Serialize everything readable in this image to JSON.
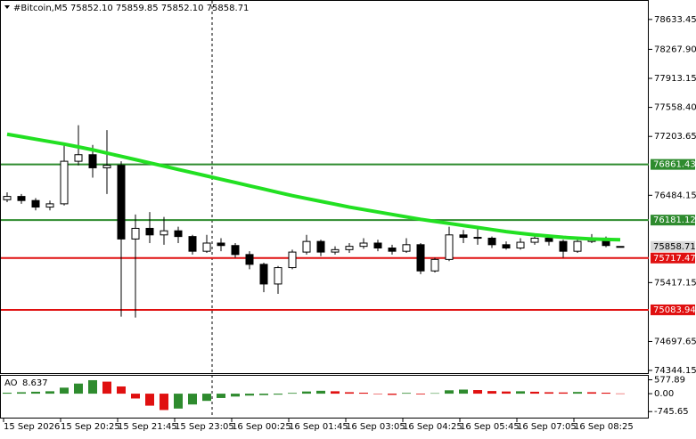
{
  "chart_data": {
    "type": "candlestick",
    "title": "#Bitcoin,M5  75852.10 75859.85 75852.10 75858.71",
    "categories": [
      "15 Sep 2026",
      null,
      null,
      null,
      "15 Sep 20:25",
      null,
      null,
      null,
      "15 Sep 21:45",
      null,
      null,
      null,
      "15 Sep 23:05",
      null,
      null,
      null,
      "16 Sep 00:25",
      null,
      null,
      null,
      "16 Sep 01:45",
      null,
      null,
      null,
      "16 Sep 03:05",
      null,
      null,
      null,
      "16 Sep 04:25",
      null,
      null,
      null,
      "16 Sep 05:45",
      null,
      null,
      null,
      "16 Sep 07:05",
      null,
      null,
      null,
      "16 Sep 08:25",
      null,
      null,
      null
    ],
    "open": [
      76430,
      76470,
      76420,
      76340,
      76380,
      76900,
      76980,
      76820,
      76850,
      75950,
      76080,
      76000,
      76050,
      75980,
      75800,
      75900,
      75870,
      75760,
      75640,
      75400,
      75600,
      75790,
      75920,
      75790,
      75820,
      75860,
      75900,
      75840,
      75800,
      75880,
      75560,
      75700,
      76000,
      75970,
      75960,
      75880,
      75840,
      75910,
      75960,
      75920,
      75800,
      75920,
      75960,
      75852.1
    ],
    "high": [
      76520,
      76500,
      76450,
      76420,
      77100,
      77340,
      77100,
      77280,
      76900,
      76250,
      76280,
      76220,
      76100,
      76000,
      76000,
      75960,
      75900,
      75800,
      75660,
      75620,
      75820,
      76000,
      75940,
      75860,
      75900,
      75960,
      75940,
      75880,
      75960,
      75900,
      75720,
      76100,
      76060,
      76080,
      75980,
      75920,
      75960,
      76020,
      75980,
      75940,
      75960,
      76010,
      75980,
      75859.85
    ],
    "low": [
      76400,
      76380,
      76300,
      76300,
      76360,
      76850,
      76700,
      76500,
      75000,
      74990,
      75900,
      75880,
      75900,
      75760,
      75780,
      75800,
      75720,
      75580,
      75300,
      75280,
      75580,
      75760,
      75740,
      75760,
      75780,
      75830,
      75800,
      75760,
      75780,
      75520,
      75540,
      75680,
      75900,
      75880,
      75840,
      75820,
      75820,
      75880,
      75870,
      75720,
      75780,
      75900,
      75850,
      75852.1
    ],
    "close": [
      76470,
      76420,
      76340,
      76380,
      76900,
      76980,
      76820,
      76850,
      75950,
      76080,
      76000,
      76050,
      75980,
      75800,
      75900,
      75870,
      75760,
      75640,
      75400,
      75600,
      75790,
      75920,
      75790,
      75820,
      75860,
      75900,
      75840,
      75800,
      75880,
      75560,
      75700,
      76000,
      75970,
      75960,
      75880,
      75840,
      75910,
      75960,
      75920,
      75800,
      75920,
      75960,
      75870,
      75858.71
    ],
    "ma": {
      "color": "#22e022",
      "values": [
        77230,
        77200,
        77170,
        77140,
        77110,
        77075,
        77040,
        77000,
        76960,
        76920,
        76880,
        76840,
        76800,
        76760,
        76720,
        76680,
        76640,
        76600,
        76560,
        76520,
        76480,
        76445,
        76410,
        76375,
        76340,
        76310,
        76280,
        76250,
        76220,
        76190,
        76165,
        76140,
        76115,
        76090,
        76065,
        76040,
        76020,
        76000,
        75985,
        75970,
        75960,
        75950,
        75945,
        75940
      ]
    },
    "levels": [
      {
        "value": 76861.43,
        "color": "#2e8b2e"
      },
      {
        "value": 76181.12,
        "color": "#2e8b2e"
      },
      {
        "value": 75717.47,
        "color": "#e01010"
      },
      {
        "value": 75083.94,
        "color": "#e01010"
      }
    ],
    "ylim": [
      74300,
      78860
    ],
    "yticks": [
      78633.45,
      {
        "value": 78267.9,
        "label": "78267.90"
      },
      77913.15,
      {
        "value": 77558.4,
        "label": "77558.40"
      },
      77203.65,
      76484.15,
      75417.15,
      74697.65,
      74344.15
    ],
    "ao": {
      "title": "AO",
      "values": [
        40,
        60,
        80,
        100,
        250,
        420,
        560,
        500,
        300,
        -200,
        -500,
        -680,
        -620,
        -450,
        -300,
        -180,
        -120,
        -80,
        -60,
        -40,
        30,
        90,
        120,
        100,
        60,
        40,
        -20,
        -50,
        30,
        -30,
        20,
        140,
        170,
        150,
        110,
        90,
        100,
        80,
        60,
        50,
        70,
        60,
        40,
        8.637
      ],
      "up_color": "#2e8b2e",
      "down_color": "#e01010",
      "ylim": [
        -960,
        670
      ],
      "yticks": [
        577.89,
        {
          "value": 0,
          "label": "0.00"
        },
        -745.65
      ]
    }
  }
}
